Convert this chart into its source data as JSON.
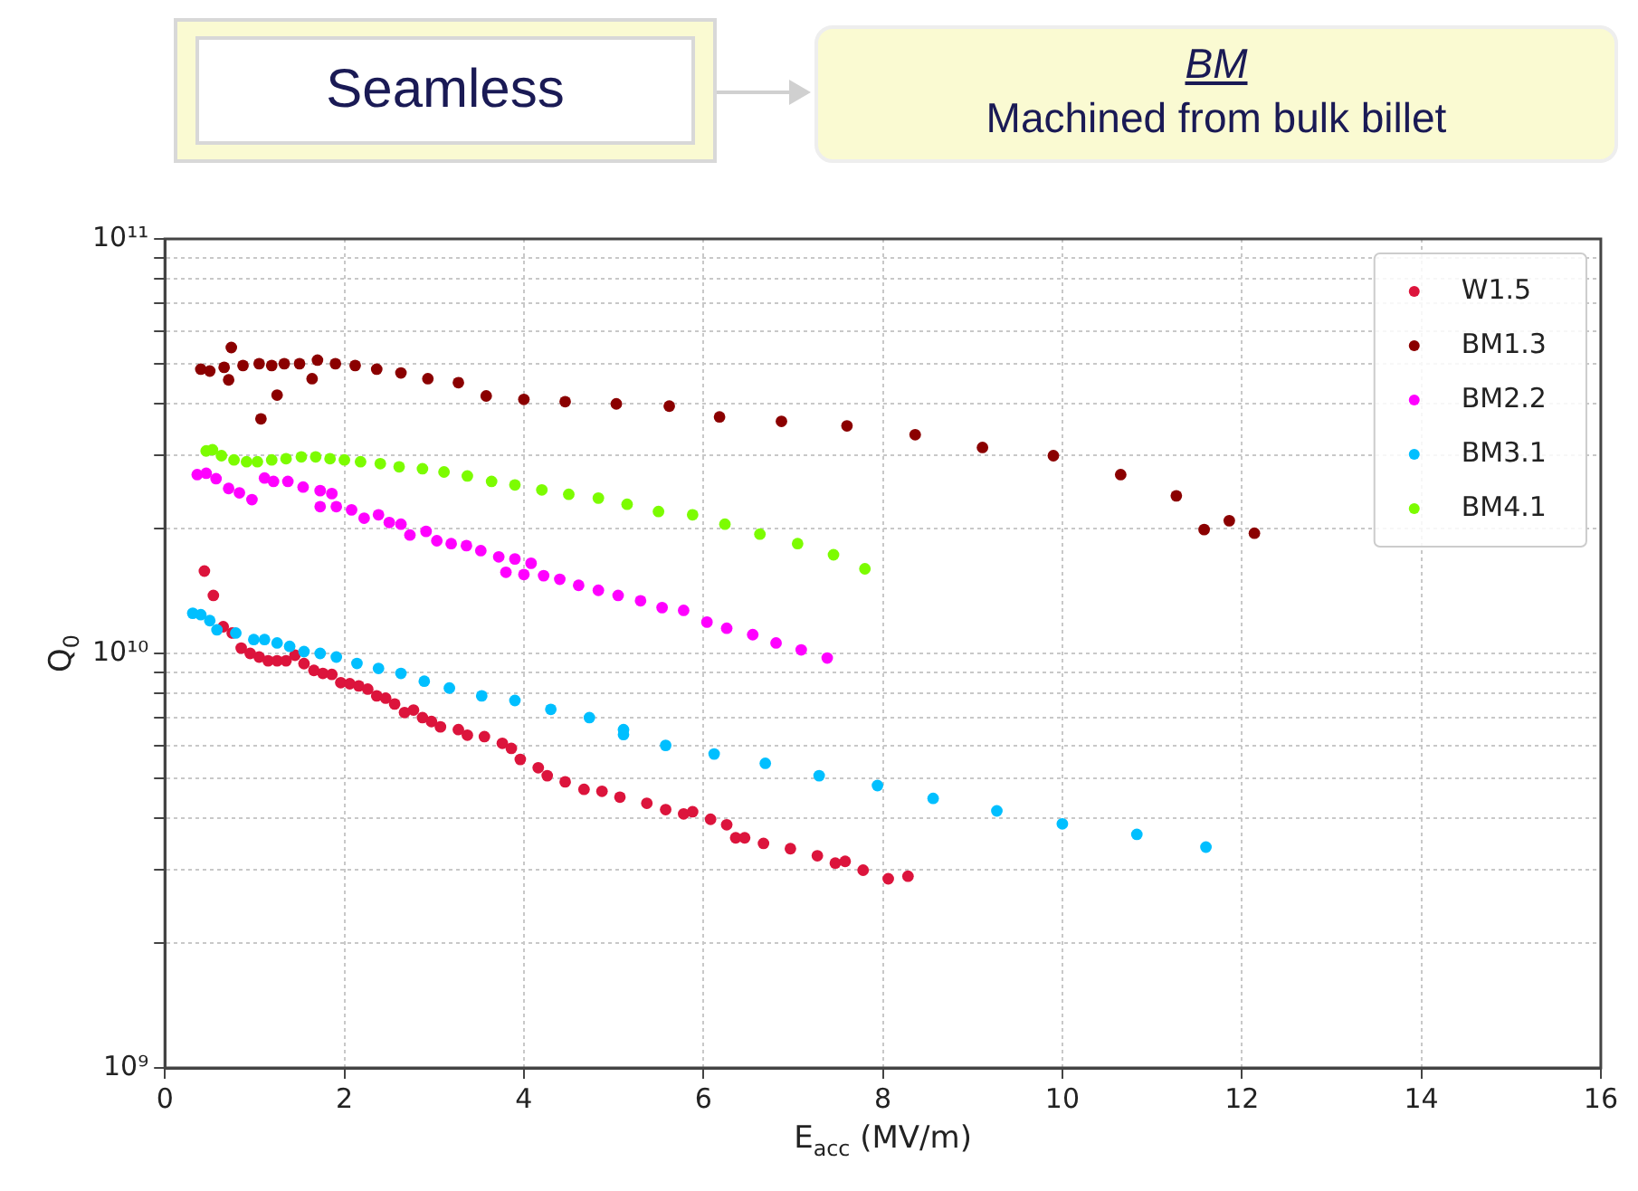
{
  "chart_data": {
    "type": "scatter",
    "title": "Seamless",
    "annotations": [
      "BM",
      "Machined from bulk billet"
    ],
    "xlabel": "E$_{acc}$ (MV/m)",
    "ylabel": "Q$_{0}$",
    "xlim": [
      0,
      16
    ],
    "xticks": [
      0,
      2,
      4,
      6,
      8,
      10,
      12,
      14,
      16
    ],
    "ylim": [
      1000000000.0,
      100000000000.0
    ],
    "log": "y",
    "yticks": [
      {
        "value": 1000000000.0,
        "label": "10⁹"
      },
      {
        "value": 2000000000.0,
        "label": null
      },
      {
        "value": 3000000000.0,
        "label": null
      },
      {
        "value": 4000000000.0,
        "label": null
      },
      {
        "value": 5000000000.0,
        "label": null
      },
      {
        "value": 6000000000.0,
        "label": null
      },
      {
        "value": 7000000000.0,
        "label": null
      },
      {
        "value": 8000000000.0,
        "label": null
      },
      {
        "value": 9000000000.0,
        "label": null
      },
      {
        "value": 10000000000.0,
        "label": "10¹⁰"
      },
      {
        "value": 20000000000.0,
        "label": null
      },
      {
        "value": 30000000000.0,
        "label": null
      },
      {
        "value": 40000000000.0,
        "label": null
      },
      {
        "value": 50000000000.0,
        "label": null
      },
      {
        "value": 60000000000.0,
        "label": null
      },
      {
        "value": 70000000000.0,
        "label": null
      },
      {
        "value": 80000000000.0,
        "label": null
      },
      {
        "value": 90000000000.0,
        "label": null
      },
      {
        "value": 100000000000.0,
        "label": "10¹¹"
      }
    ],
    "grid": true,
    "legend": "top right",
    "marker": "circle",
    "series": [
      {
        "name": "W1.5",
        "color": "#dc143c",
        "x": [
          0.44,
          0.54,
          0.65,
          0.75,
          0.85,
          0.95,
          1.05,
          1.15,
          1.25,
          1.35,
          1.45,
          1.55,
          1.66,
          1.76,
          1.86,
          1.96,
          2.06,
          2.16,
          2.26,
          2.36,
          2.46,
          2.56,
          2.67,
          2.77,
          2.87,
          2.97,
          3.07,
          3.27,
          3.37,
          3.56,
          3.76,
          3.86,
          3.96,
          4.16,
          4.26,
          4.46,
          4.67,
          4.87,
          5.07,
          5.37,
          5.58,
          5.78,
          5.88,
          6.08,
          6.26,
          6.36,
          6.46,
          6.67,
          6.97,
          7.27,
          7.47,
          7.58,
          7.78,
          8.06,
          8.28
        ],
        "values": [
          15800000000.0,
          13800000000.0,
          11600000000.0,
          11200000000.0,
          10300000000.0,
          10000000000.0,
          9800000000.0,
          9600000000.0,
          9600000000.0,
          9600000000.0,
          9900000000.0,
          9450000000.0,
          9100000000.0,
          8950000000.0,
          8900000000.0,
          8500000000.0,
          8450000000.0,
          8350000000.0,
          8200000000.0,
          7900000000.0,
          7800000000.0,
          7550000000.0,
          7200000000.0,
          7300000000.0,
          7000000000.0,
          6850000000.0,
          6650000000.0,
          6550000000.0,
          6350000000.0,
          6300000000.0,
          6070000000.0,
          5900000000.0,
          5550000000.0,
          5300000000.0,
          5070000000.0,
          4900000000.0,
          4700000000.0,
          4650000000.0,
          4500000000.0,
          4350000000.0,
          4200000000.0,
          4100000000.0,
          4150000000.0,
          3980000000.0,
          3860000000.0,
          3590000000.0,
          3590000000.0,
          3480000000.0,
          3380000000.0,
          3250000000.0,
          3120000000.0,
          3150000000.0,
          3000000000.0,
          2860000000.0,
          2900000000.0
        ]
      },
      {
        "name": "BM1.3",
        "color": "#8b0000",
        "x": [
          0.4,
          0.5,
          0.66,
          0.74,
          0.71,
          0.87,
          1.05,
          1.07,
          1.25,
          1.19,
          1.33,
          1.5,
          1.64,
          1.7,
          1.9,
          2.12,
          2.36,
          2.63,
          2.93,
          3.27,
          3.58,
          4.0,
          4.46,
          5.03,
          5.62,
          6.18,
          6.87,
          7.6,
          8.36,
          9.11,
          9.9,
          10.65,
          11.27,
          11.58,
          11.86,
          12.14
        ],
        "values": [
          48500000000.0,
          48000000000.0,
          49000000000.0,
          54700000000.0,
          45700000000.0,
          49500000000.0,
          50000000000.0,
          36800000000.0,
          42000000000.0,
          49500000000.0,
          50000000000.0,
          50000000000.0,
          46000000000.0,
          51000000000.0,
          50000000000.0,
          49500000000.0,
          48500000000.0,
          47500000000.0,
          46000000000.0,
          45000000000.0,
          41800000000.0,
          41000000000.0,
          40500000000.0,
          40000000000.0,
          39500000000.0,
          37200000000.0,
          36300000000.0,
          35400000000.0,
          33700000000.0,
          31400000000.0,
          30000000000.0,
          27000000000.0,
          24000000000.0,
          19900000000.0,
          20900000000.0,
          19500000000.0
        ]
      },
      {
        "name": "BM2.2",
        "color": "#ff00ff",
        "x": [
          0.36,
          0.46,
          0.57,
          0.71,
          0.83,
          0.97,
          1.11,
          1.21,
          1.37,
          1.54,
          1.73,
          1.86,
          1.73,
          1.91,
          2.08,
          2.22,
          2.38,
          2.5,
          2.63,
          2.73,
          2.91,
          3.03,
          3.19,
          3.36,
          3.52,
          3.72,
          3.8,
          3.9,
          4.0,
          4.08,
          4.22,
          4.4,
          4.61,
          4.83,
          5.05,
          5.3,
          5.54,
          5.78,
          6.04,
          6.26,
          6.55,
          6.81,
          7.09,
          7.38
        ],
        "values": [
          27000000000.0,
          27200000000.0,
          26400000000.0,
          25000000000.0,
          24400000000.0,
          23500000000.0,
          26500000000.0,
          26000000000.0,
          26000000000.0,
          25200000000.0,
          24700000000.0,
          24300000000.0,
          22600000000.0,
          22600000000.0,
          22200000000.0,
          21200000000.0,
          21600000000.0,
          20700000000.0,
          20500000000.0,
          19300000000.0,
          19700000000.0,
          18700000000.0,
          18400000000.0,
          18200000000.0,
          17700000000.0,
          17100000000.0,
          15700000000.0,
          16900000000.0,
          15500000000.0,
          16500000000.0,
          15400000000.0,
          15100000000.0,
          14600000000.0,
          14200000000.0,
          13800000000.0,
          13400000000.0,
          12900000000.0,
          12700000000.0,
          11900000000.0,
          11500000000.0,
          11100000000.0,
          10600000000.0,
          10200000000.0,
          9750000000.0
        ]
      },
      {
        "name": "BM3.1",
        "color": "#00bfff",
        "x": [
          0.31,
          0.4,
          0.5,
          0.58,
          0.79,
          0.99,
          1.11,
          1.25,
          1.39,
          1.55,
          1.73,
          1.91,
          2.14,
          2.38,
          2.63,
          2.89,
          3.17,
          3.53,
          3.9,
          4.3,
          4.73,
          5.11,
          5.11,
          5.58,
          6.12,
          6.69,
          7.29,
          7.94,
          8.56,
          9.27,
          10.0,
          10.83,
          11.6
        ],
        "values": [
          12500000000.0,
          12400000000.0,
          12000000000.0,
          11400000000.0,
          11200000000.0,
          10800000000.0,
          10800000000.0,
          10600000000.0,
          10400000000.0,
          10100000000.0,
          10000000000.0,
          9800000000.0,
          9460000000.0,
          9200000000.0,
          8950000000.0,
          8570000000.0,
          8250000000.0,
          7900000000.0,
          7700000000.0,
          7330000000.0,
          7000000000.0,
          6370000000.0,
          6550000000.0,
          6000000000.0,
          5720000000.0,
          5430000000.0,
          5070000000.0,
          4800000000.0,
          4470000000.0,
          4170000000.0,
          3880000000.0,
          3660000000.0,
          3410000000.0
        ]
      },
      {
        "name": "BM4.1",
        "color": "#7cfc00",
        "x": [
          0.46,
          0.53,
          0.63,
          0.77,
          0.91,
          1.03,
          1.19,
          1.35,
          1.52,
          1.68,
          1.84,
          2.0,
          2.18,
          2.4,
          2.61,
          2.87,
          3.11,
          3.37,
          3.64,
          3.9,
          4.2,
          4.5,
          4.83,
          5.15,
          5.5,
          5.88,
          6.24,
          6.63,
          7.05,
          7.45,
          7.8
        ],
        "values": [
          30800000000.0,
          31000000000.0,
          30000000000.0,
          29300000000.0,
          29000000000.0,
          29000000000.0,
          29300000000.0,
          29500000000.0,
          29800000000.0,
          29800000000.0,
          29500000000.0,
          29300000000.0,
          29000000000.0,
          28700000000.0,
          28200000000.0,
          27900000000.0,
          27400000000.0,
          26800000000.0,
          26000000000.0,
          25500000000.0,
          24800000000.0,
          24200000000.0,
          23700000000.0,
          22900000000.0,
          22000000000.0,
          21600000000.0,
          20500000000.0,
          19400000000.0,
          18400000000.0,
          17300000000.0,
          16000000000.0
        ]
      }
    ]
  }
}
